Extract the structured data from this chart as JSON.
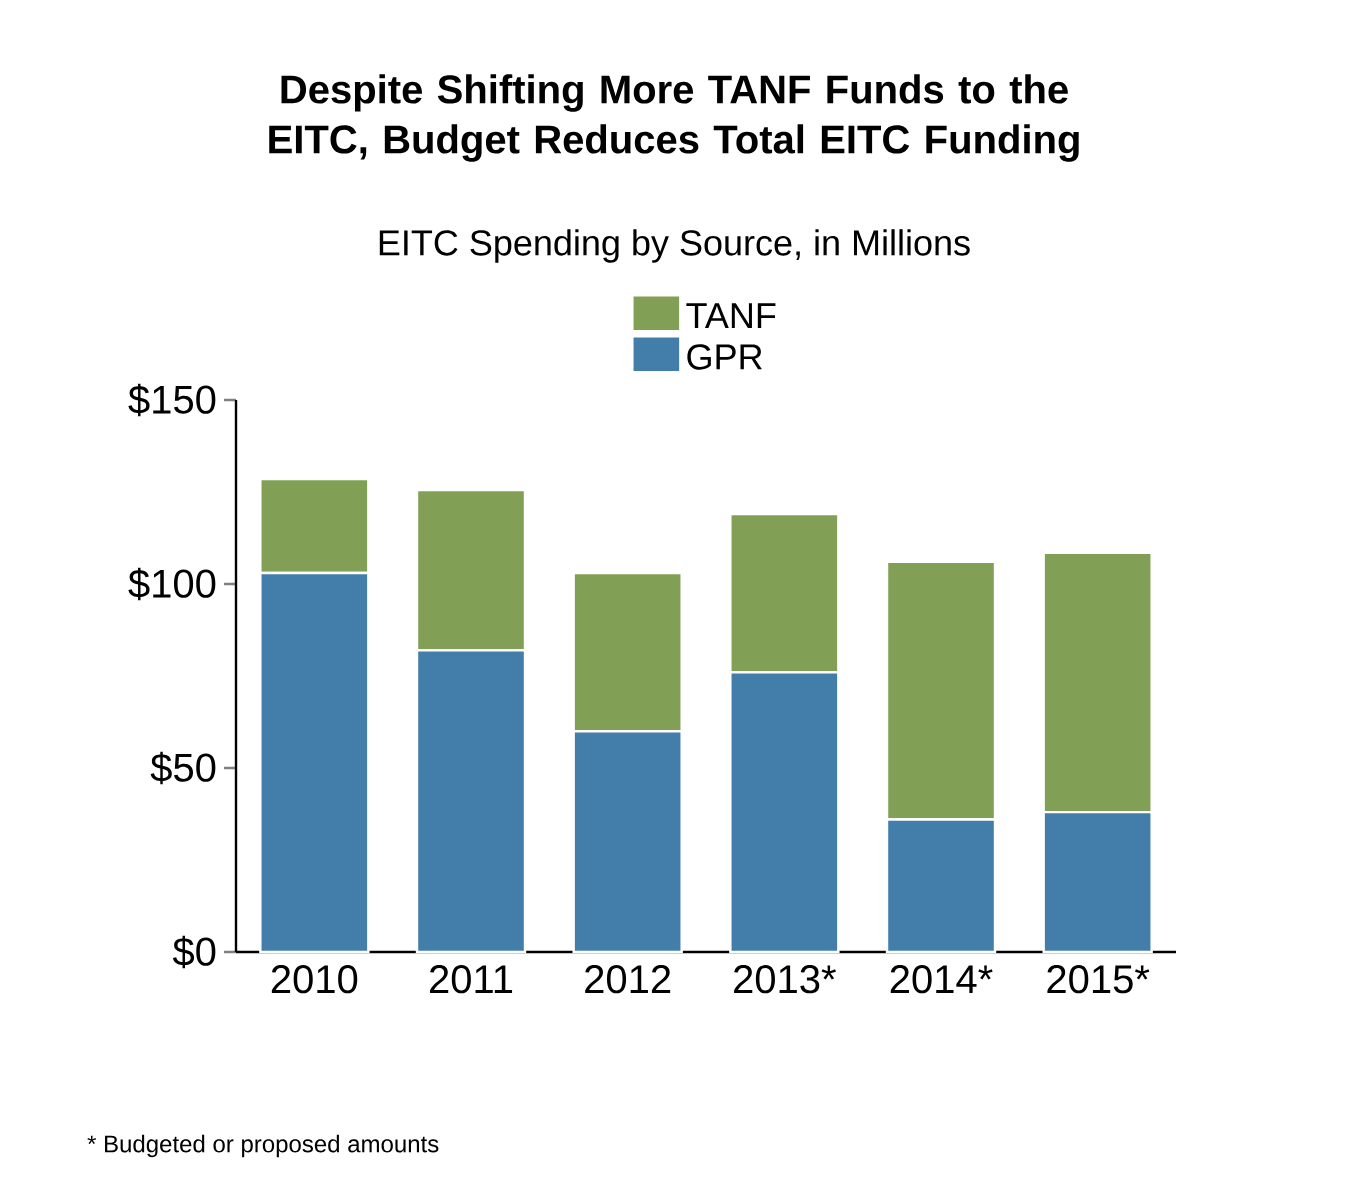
{
  "chart_data": {
    "type": "bar",
    "stacked": true,
    "title": "Despite Shifting More TANF Funds to the EITC, Budget Reduces Total EITC Funding",
    "subtitle": "EITC Spending by Source, in Millions",
    "categories": [
      "2010",
      "2011",
      "2012",
      "2013*",
      "2014*",
      "2015*"
    ],
    "series": [
      {
        "name": "GPR",
        "color": "#427ea9",
        "values": [
          103,
          82,
          60,
          76,
          36,
          38
        ]
      },
      {
        "name": "TANF",
        "color": "#82a055",
        "values": [
          25.5,
          43.5,
          43,
          43,
          70,
          70.5
        ]
      }
    ],
    "ylim": [
      0,
      150
    ],
    "yticks": [
      {
        "value": 0,
        "label": "$0"
      },
      {
        "value": 50,
        "label": "$50"
      },
      {
        "value": 100,
        "label": "$100"
      },
      {
        "value": 150,
        "label": "$150"
      }
    ],
    "legend": "top",
    "annotations": [
      "* Budgeted or proposed amounts"
    ]
  }
}
